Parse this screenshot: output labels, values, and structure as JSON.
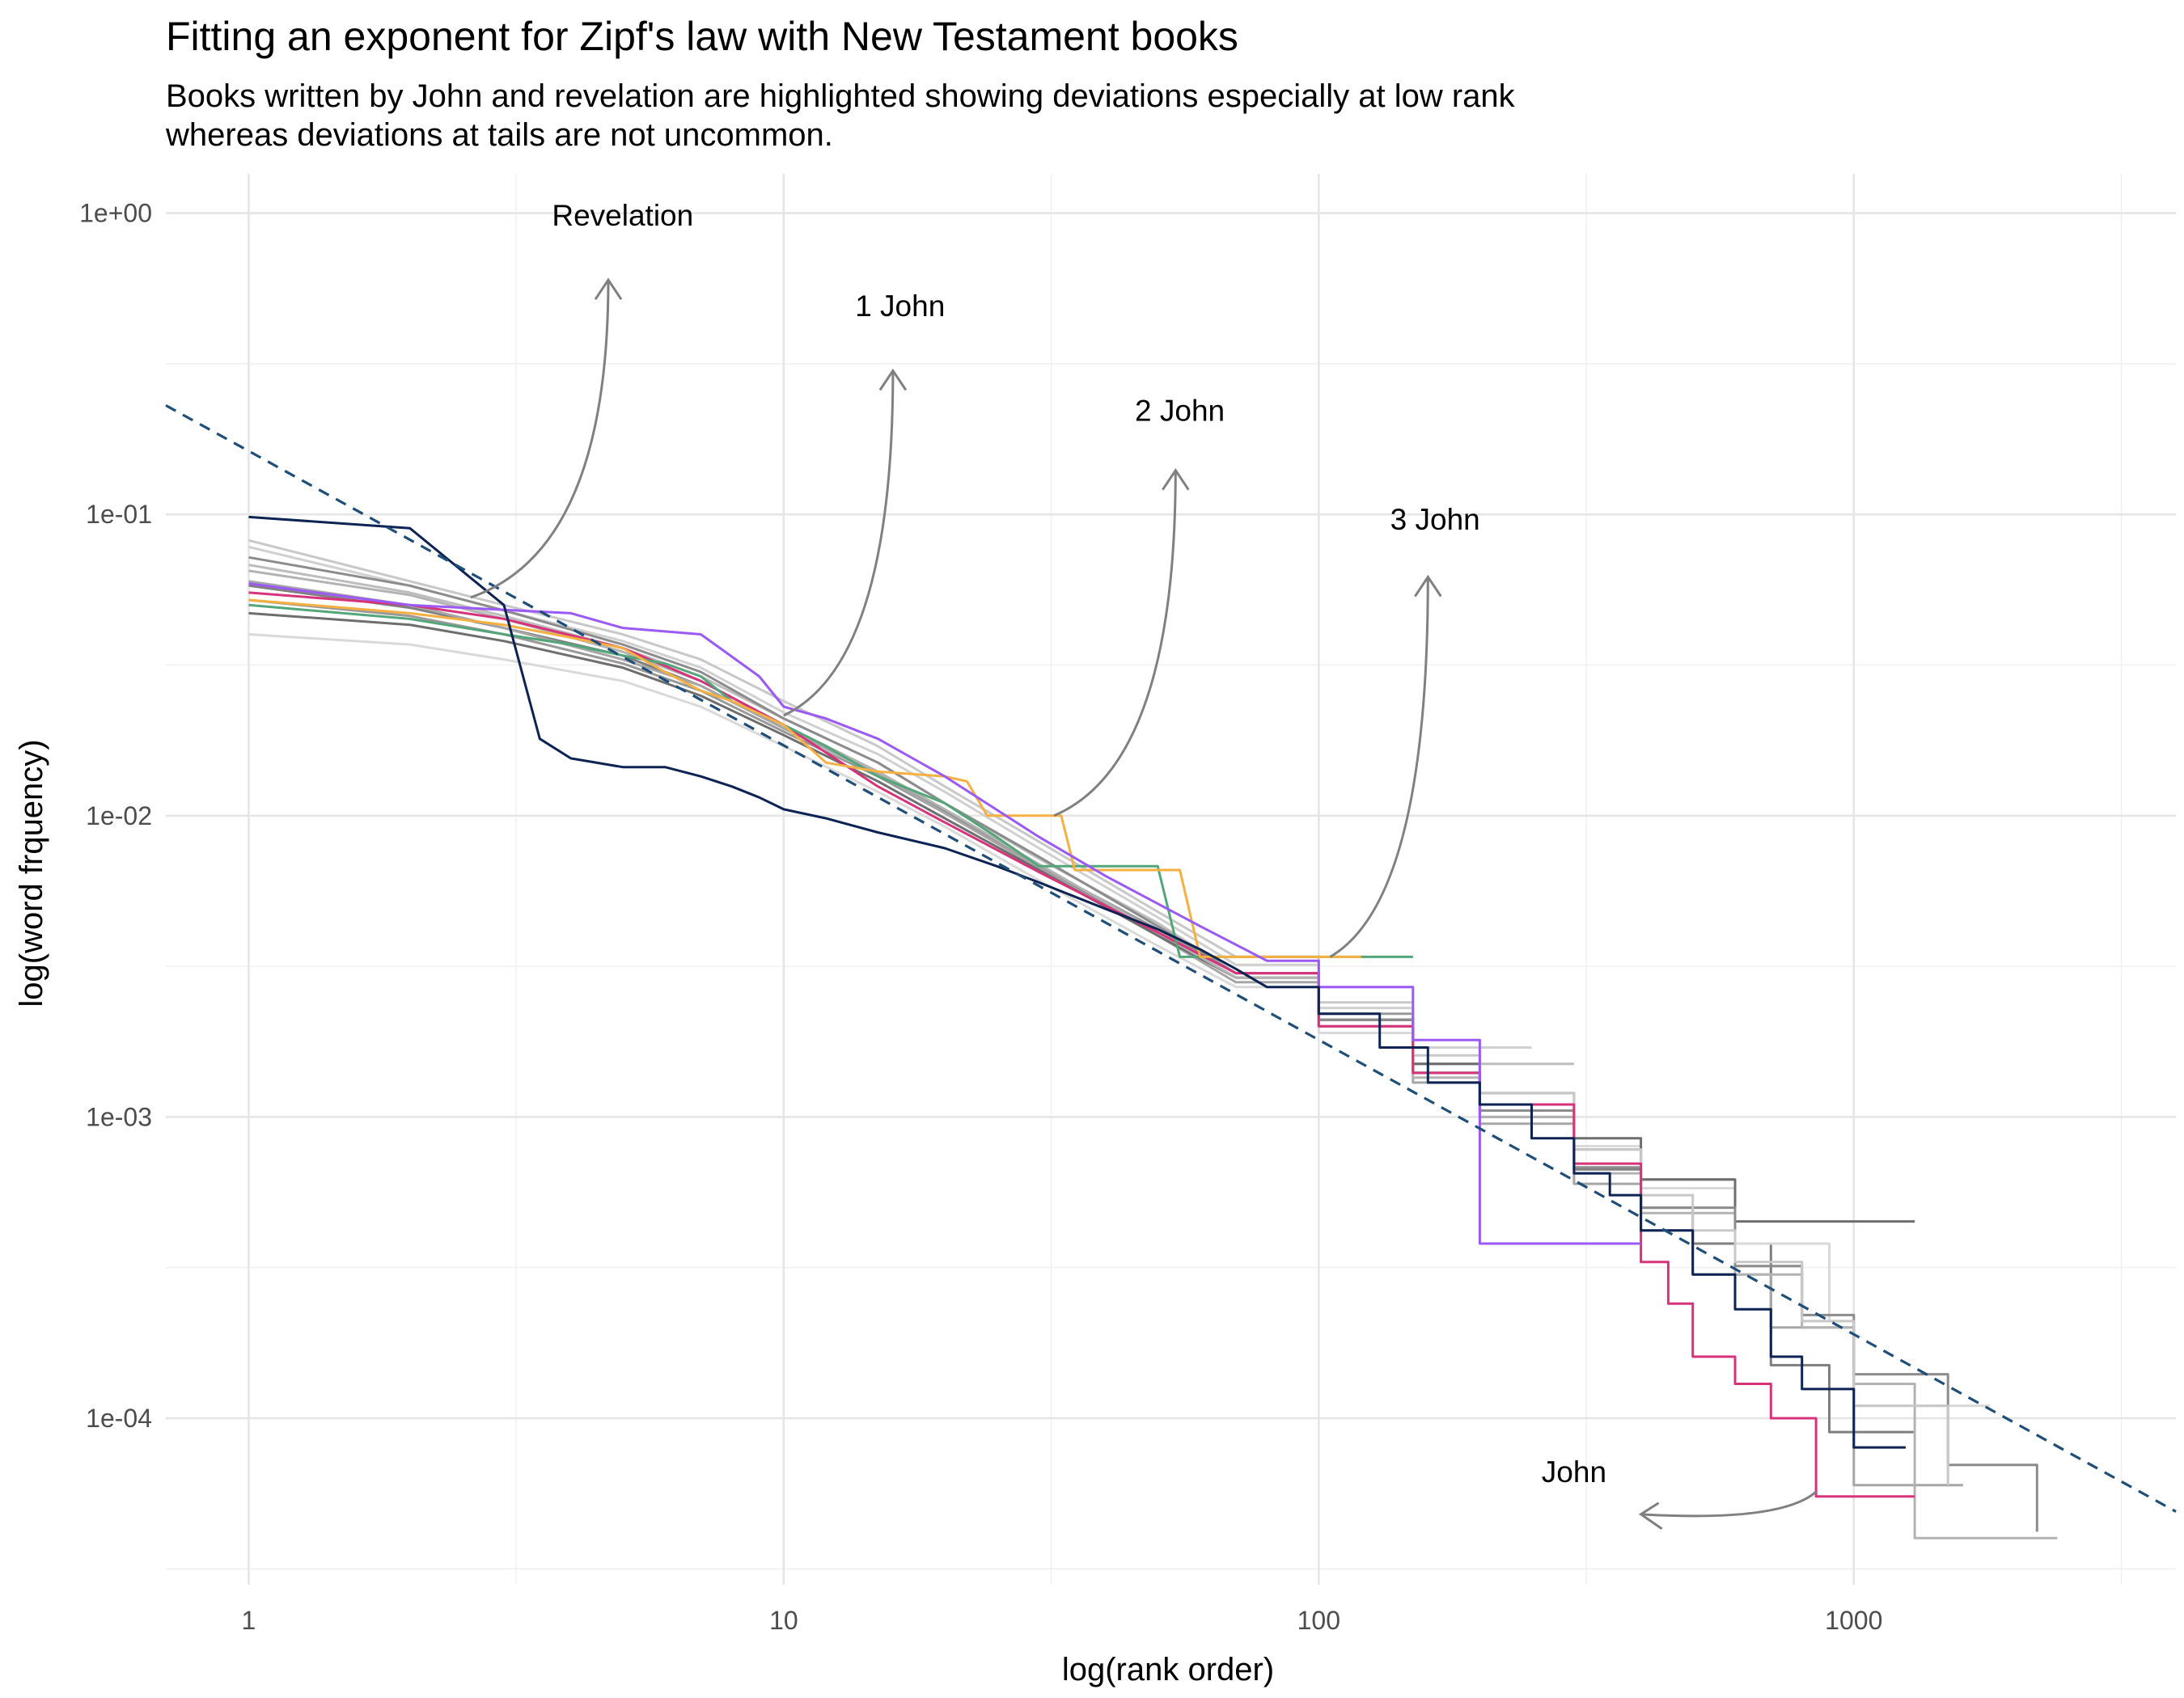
{
  "chart_data": {
    "type": "line",
    "title": "Fitting an exponent for Zipf's law with New Testament books",
    "subtitle_lines": [
      "Books written by John and revelation are highlighted showing deviations especially at low rank",
      "whereas deviations at tails are not uncommon."
    ],
    "xlabel": "log(rank order)",
    "ylabel": "log(word frquency)",
    "x_scale": "log10",
    "y_scale": "log10",
    "xlim": [
      0.7,
      4000
    ],
    "ylim": [
      2.8e-05,
      1.35
    ],
    "x_ticks": [
      1,
      10,
      100,
      1000
    ],
    "x_tick_labels": [
      "1",
      "10",
      "100",
      "1000"
    ],
    "y_ticks": [
      0.0001,
      0.001,
      0.01,
      0.1,
      1
    ],
    "y_tick_labels": [
      "1e-04",
      "1e-03",
      "1e-02",
      "1e-01",
      "1e+00"
    ],
    "grid": true,
    "legend": "none",
    "fit_line": {
      "x": [
        0.7,
        4000
      ],
      "y": [
        0.23,
        4.9e-05
      ],
      "style": "dashed",
      "color": "#1f4e79"
    },
    "series": [
      {
        "color": "#0d2353",
        "x": [
          1,
          2,
          3,
          3.5,
          4,
          5,
          6,
          7,
          8,
          9,
          10,
          12,
          15,
          20,
          25,
          30,
          40,
          50,
          60,
          70,
          80,
          100,
          130,
          160,
          200,
          250,
          300,
          350,
          400,
          500,
          600,
          700,
          800,
          1000,
          1250
        ],
        "y": [
          0.098,
          0.09,
          0.05,
          0.018,
          0.0155,
          0.0145,
          0.0145,
          0.0135,
          0.0125,
          0.0115,
          0.0105,
          0.0098,
          0.0088,
          0.0078,
          0.0068,
          0.006,
          0.0049,
          0.0042,
          0.0036,
          0.0031,
          0.0027,
          0.0022,
          0.0017,
          0.0013,
          0.0011,
          0.00085,
          0.00065,
          0.00055,
          0.00042,
          0.0003,
          0.00023,
          0.00016,
          0.000125,
          8e-05,
          8e-05
        ]
      },
      {
        "color": "#9b59f5",
        "x": [
          1,
          2,
          4,
          5,
          7,
          9,
          10,
          12,
          15,
          20,
          30,
          40,
          60,
          80,
          100,
          150,
          200,
          250,
          300,
          400
        ],
        "y": [
          0.059,
          0.05,
          0.047,
          0.042,
          0.04,
          0.029,
          0.023,
          0.021,
          0.018,
          0.0135,
          0.0085,
          0.0063,
          0.0043,
          0.0033,
          0.0027,
          0.0018,
          0.00038,
          0.00038,
          0.00038,
          0.00038
        ]
      },
      {
        "color": "#f5b041",
        "x": [
          1,
          2,
          3,
          4,
          5,
          6,
          7,
          8,
          10,
          12,
          15,
          20,
          22,
          24,
          26,
          28,
          30,
          33,
          35,
          40,
          45,
          50,
          55,
          60,
          80,
          100,
          120
        ],
        "y": [
          0.052,
          0.047,
          0.043,
          0.039,
          0.036,
          0.03,
          0.026,
          0.024,
          0.02,
          0.015,
          0.014,
          0.0135,
          0.013,
          0.01,
          0.01,
          0.01,
          0.01,
          0.01,
          0.0066,
          0.0066,
          0.0066,
          0.0066,
          0.0066,
          0.0034,
          0.0034,
          0.0034,
          0.0034
        ]
      },
      {
        "color": "#52a679",
        "x": [
          1,
          2,
          3,
          4,
          5,
          6,
          7,
          8,
          10,
          12,
          15,
          20,
          25,
          30,
          35,
          40,
          45,
          50,
          55,
          60,
          80,
          100,
          130,
          150
        ],
        "y": [
          0.05,
          0.045,
          0.04,
          0.037,
          0.034,
          0.032,
          0.029,
          0.024,
          0.02,
          0.017,
          0.0135,
          0.011,
          0.0085,
          0.0068,
          0.0068,
          0.0068,
          0.0068,
          0.0068,
          0.0034,
          0.0034,
          0.0034,
          0.0034,
          0.0034,
          0.0034
        ]
      },
      {
        "color": "#d6337a",
        "x": [
          1,
          2,
          3,
          5,
          7,
          10,
          15,
          20,
          30,
          50,
          70,
          100,
          150,
          200,
          300,
          400,
          450,
          500,
          600,
          700,
          850,
          1000,
          1300
        ],
        "y": [
          0.055,
          0.05,
          0.045,
          0.036,
          0.028,
          0.02,
          0.0125,
          0.0095,
          0.0065,
          0.0041,
          0.003,
          0.002,
          0.0014,
          0.0011,
          0.0007,
          0.00033,
          0.00024,
          0.00016,
          0.00013,
          0.0001,
          5.5e-05,
          5.5e-05,
          5.5e-05
        ]
      },
      {
        "color": "#c8c8c8",
        "x": [
          1,
          2,
          3,
          5,
          7,
          10,
          15,
          20,
          30,
          50,
          70,
          100,
          150,
          200,
          300,
          400,
          500,
          600,
          800,
          1000,
          1500
        ],
        "y": [
          0.082,
          0.06,
          0.05,
          0.04,
          0.033,
          0.024,
          0.017,
          0.0125,
          0.0082,
          0.0048,
          0.0034,
          0.0024,
          0.0016,
          0.0012,
          0.00078,
          0.00055,
          0.00042,
          0.00033,
          0.00021,
          0.00011,
          6e-05
        ]
      },
      {
        "color": "#8c8c8c",
        "x": [
          1,
          2,
          3,
          5,
          7,
          10,
          15,
          20,
          30,
          50,
          70,
          100,
          150,
          200,
          300,
          400,
          600,
          800,
          1000,
          1500,
          2200
        ],
        "y": [
          0.072,
          0.058,
          0.048,
          0.037,
          0.03,
          0.021,
          0.015,
          0.011,
          0.0073,
          0.0043,
          0.003,
          0.0021,
          0.0014,
          0.00105,
          0.00068,
          0.0005,
          0.00032,
          0.00022,
          0.00014,
          7e-05,
          4.2e-05
        ]
      },
      {
        "color": "#b3b3b3",
        "x": [
          1,
          2,
          3,
          5,
          7,
          10,
          15,
          20,
          30,
          50,
          70,
          100,
          150,
          200,
          300,
          400,
          600,
          800,
          1000,
          1300,
          2400
        ],
        "y": [
          0.065,
          0.054,
          0.045,
          0.035,
          0.028,
          0.02,
          0.014,
          0.0105,
          0.0069,
          0.0041,
          0.0029,
          0.002,
          0.00135,
          0.001,
          0.00065,
          0.00048,
          0.0003,
          0.0002,
          0.00013,
          4e-05,
          4e-05
        ]
      },
      {
        "color": "#6e6e6e",
        "x": [
          1,
          2,
          3,
          5,
          7,
          10,
          15,
          20,
          30,
          50,
          70,
          100,
          150,
          200,
          300,
          400,
          600,
          800,
          1000,
          1300
        ],
        "y": [
          0.047,
          0.043,
          0.038,
          0.031,
          0.025,
          0.0185,
          0.013,
          0.0098,
          0.0066,
          0.004,
          0.0029,
          0.0021,
          0.0015,
          0.0012,
          0.00085,
          0.00062,
          0.00045,
          0.00045,
          0.00045,
          0.00045
        ]
      },
      {
        "color": "#d9d9d9",
        "x": [
          1,
          2,
          3,
          5,
          7,
          10,
          15,
          20,
          30,
          50,
          70,
          100,
          150,
          200,
          300,
          400,
          600,
          900,
          1000,
          1800
        ],
        "y": [
          0.04,
          0.037,
          0.033,
          0.028,
          0.023,
          0.017,
          0.012,
          0.0092,
          0.0061,
          0.0037,
          0.0027,
          0.0019,
          0.0014,
          0.0011,
          0.0008,
          0.00058,
          0.00038,
          0.00021,
          0.00011,
          0.00011
        ]
      },
      {
        "color": "#a6a6a6",
        "x": [
          1,
          2,
          3,
          5,
          7,
          10,
          15,
          20,
          30,
          50,
          70,
          100,
          150,
          200,
          300,
          400,
          500,
          700,
          1000,
          1600
        ],
        "y": [
          0.06,
          0.05,
          0.042,
          0.033,
          0.027,
          0.0195,
          0.0138,
          0.0102,
          0.0067,
          0.004,
          0.0028,
          0.002,
          0.0013,
          0.00095,
          0.0006,
          0.00042,
          0.0003,
          0.0002,
          6e-05,
          6e-05
        ]
      },
      {
        "color": "#bdbdbd",
        "x": [
          1,
          2,
          3,
          5,
          7,
          10,
          15,
          20,
          30,
          50,
          70,
          100,
          150,
          200,
          300
        ],
        "y": [
          0.068,
          0.055,
          0.046,
          0.036,
          0.029,
          0.021,
          0.015,
          0.011,
          0.0072,
          0.0044,
          0.003,
          0.0021,
          0.0015,
          0.0015,
          0.0015
        ]
      },
      {
        "color": "#999999",
        "x": [
          1,
          2,
          3,
          5,
          7,
          10,
          15,
          20,
          30,
          50,
          70,
          100,
          150,
          200,
          300,
          400,
          500,
          600
        ],
        "y": [
          0.052,
          0.046,
          0.04,
          0.032,
          0.026,
          0.019,
          0.0135,
          0.0102,
          0.0068,
          0.0042,
          0.003,
          0.0022,
          0.0015,
          0.0011,
          0.00078,
          0.00062,
          0.00062,
          0.00062
        ]
      },
      {
        "color": "#d0d0d0",
        "x": [
          1,
          2,
          3,
          5,
          7,
          10,
          15,
          20,
          30,
          50,
          70,
          100,
          150,
          200,
          250
        ],
        "y": [
          0.078,
          0.058,
          0.048,
          0.038,
          0.031,
          0.022,
          0.016,
          0.012,
          0.0078,
          0.0046,
          0.0032,
          0.0023,
          0.0017,
          0.0017,
          0.0017
        ]
      },
      {
        "color": "#7f7f7f",
        "x": [
          1,
          2,
          3,
          5,
          7,
          10,
          15,
          20,
          30,
          50,
          70,
          100,
          150,
          200,
          300,
          400,
          500,
          700,
          900,
          1300
        ],
        "y": [
          0.058,
          0.049,
          0.042,
          0.034,
          0.027,
          0.0195,
          0.0138,
          0.0103,
          0.0068,
          0.0041,
          0.0029,
          0.0021,
          0.0014,
          0.001,
          0.00067,
          0.0005,
          0.00038,
          0.00015,
          9e-05,
          9e-05
        ]
      }
    ],
    "annotations": [
      {
        "text": "Revelation",
        "x": 5,
        "y": 0.98,
        "arrow": {
          "from": [
            2.6,
            0.053
          ],
          "to": [
            4.7,
            0.6
          ]
        }
      },
      {
        "text": "1 John",
        "x": 16.5,
        "y": 0.49,
        "arrow": {
          "from": [
            10,
            0.0215
          ],
          "to": [
            16,
            0.3
          ]
        }
      },
      {
        "text": "2 John",
        "x": 55,
        "y": 0.22,
        "arrow": {
          "from": [
            32,
            0.01
          ],
          "to": [
            54,
            0.14
          ]
        }
      },
      {
        "text": "3 John",
        "x": 165,
        "y": 0.096,
        "arrow": {
          "from": [
            105,
            0.0034
          ],
          "to": [
            160,
            0.062
          ]
        }
      },
      {
        "text": "John",
        "x": 300,
        "y": 6.6e-05,
        "arrow": {
          "from": [
            850,
            5.7e-05
          ],
          "to": [
            400,
            4.8e-05
          ]
        }
      }
    ]
  }
}
